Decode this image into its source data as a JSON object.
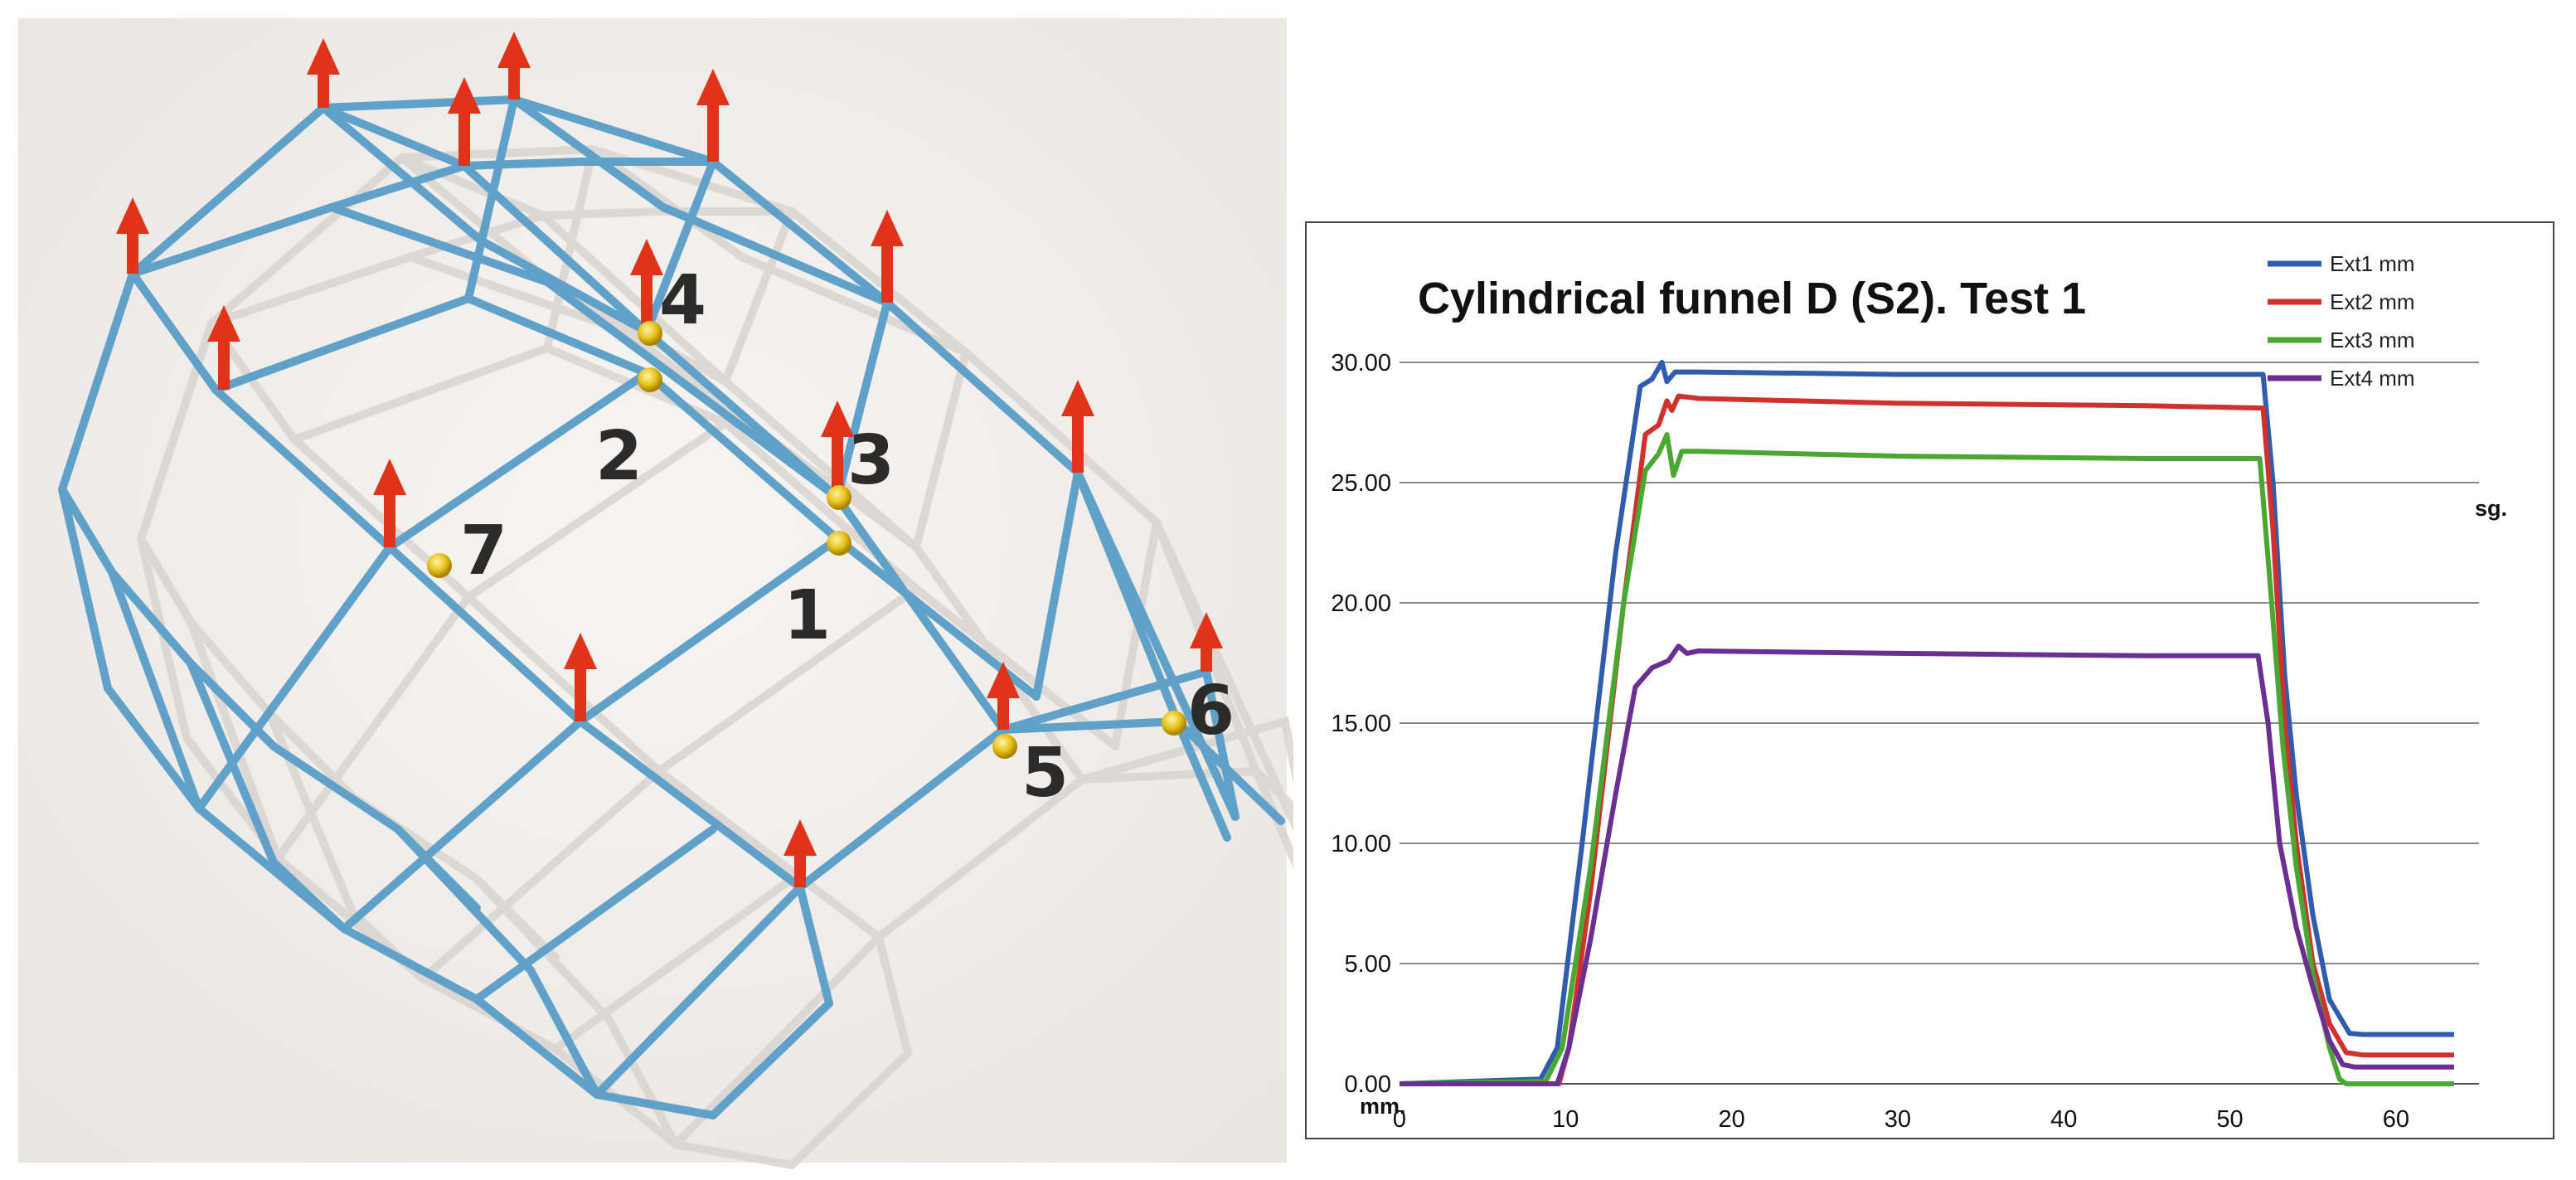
{
  "structure_figure": {
    "node_labels": [
      "1",
      "2",
      "3",
      "4",
      "5",
      "6",
      "7"
    ],
    "colors": {
      "bars": "#5fa1c8",
      "arrows": "#e0331a",
      "joints": "#e7c21a",
      "shadow": "#dad6d2",
      "background": "#f2efec"
    }
  },
  "chart_data": {
    "type": "line",
    "title": "Cylindrical funnel D (S2). Test 1",
    "xlabel": "mm.",
    "ylabel": "sg.",
    "xlim": [
      0,
      65
    ],
    "ylim": [
      0,
      30
    ],
    "xticks": [
      "0",
      "10",
      "20",
      "30",
      "40",
      "50",
      "60"
    ],
    "yticks": [
      "0.00",
      "5.00",
      "10.00",
      "15.00",
      "20.00",
      "25.00",
      "30.00"
    ],
    "grid": "horizontal",
    "legend": "top-right",
    "series": [
      {
        "name": "Ext1 mm",
        "color": "#2f5cad",
        "x": [
          0,
          8.5,
          9.5,
          11,
          13,
          14.5,
          15.2,
          15.8,
          16.1,
          16.6,
          18,
          30,
          45,
          52.0,
          52.6,
          53.3,
          54,
          55,
          56,
          57.2,
          58,
          63.5
        ],
        "y": [
          0,
          0.2,
          1.5,
          10,
          22,
          29,
          29.3,
          30.0,
          29.2,
          29.6,
          29.6,
          29.5,
          29.5,
          29.5,
          25,
          17,
          12,
          7,
          3.5,
          2.1,
          2.05,
          2.05
        ]
      },
      {
        "name": "Ext2 mm",
        "color": "#d0312d",
        "x": [
          0,
          9.6,
          10.2,
          11.5,
          13.5,
          14.8,
          15.6,
          16.1,
          16.4,
          16.8,
          18,
          30,
          45,
          52.0,
          52.6,
          53.3,
          54,
          55,
          56,
          57,
          58,
          63.5
        ],
        "y": [
          0,
          0,
          1.5,
          8,
          20,
          27,
          27.4,
          28.4,
          28.0,
          28.6,
          28.5,
          28.3,
          28.2,
          28.1,
          23,
          15,
          10,
          5,
          2.5,
          1.3,
          1.2,
          1.2
        ]
      },
      {
        "name": "Ext3 mm",
        "color": "#4aa832",
        "x": [
          0,
          8.8,
          9.8,
          11.5,
          13.5,
          14.8,
          15.6,
          16.1,
          16.5,
          17,
          18,
          30,
          45,
          51.8,
          52.4,
          53.2,
          54,
          55,
          56,
          56.6,
          57,
          63.5
        ],
        "y": [
          0,
          0.1,
          1.5,
          9,
          20,
          25.5,
          26.2,
          27,
          25.3,
          26.3,
          26.3,
          26.1,
          26.0,
          26.0,
          21,
          14,
          9,
          4.5,
          1.5,
          0.2,
          0,
          0
        ]
      },
      {
        "name": "Ext4 mm",
        "color": "#6b2f93",
        "x": [
          0,
          9.5,
          10.2,
          11.5,
          13,
          14.2,
          15.2,
          16.2,
          16.8,
          17.3,
          18,
          30,
          45,
          51.7,
          52.3,
          53,
          54,
          55,
          56,
          56.8,
          57.5,
          63.5
        ],
        "y": [
          0,
          0,
          1.5,
          6,
          12,
          16.5,
          17.3,
          17.6,
          18.2,
          17.9,
          18.0,
          17.9,
          17.8,
          17.8,
          15,
          10,
          6.5,
          4,
          1.8,
          0.8,
          0.7,
          0.7
        ]
      }
    ]
  }
}
